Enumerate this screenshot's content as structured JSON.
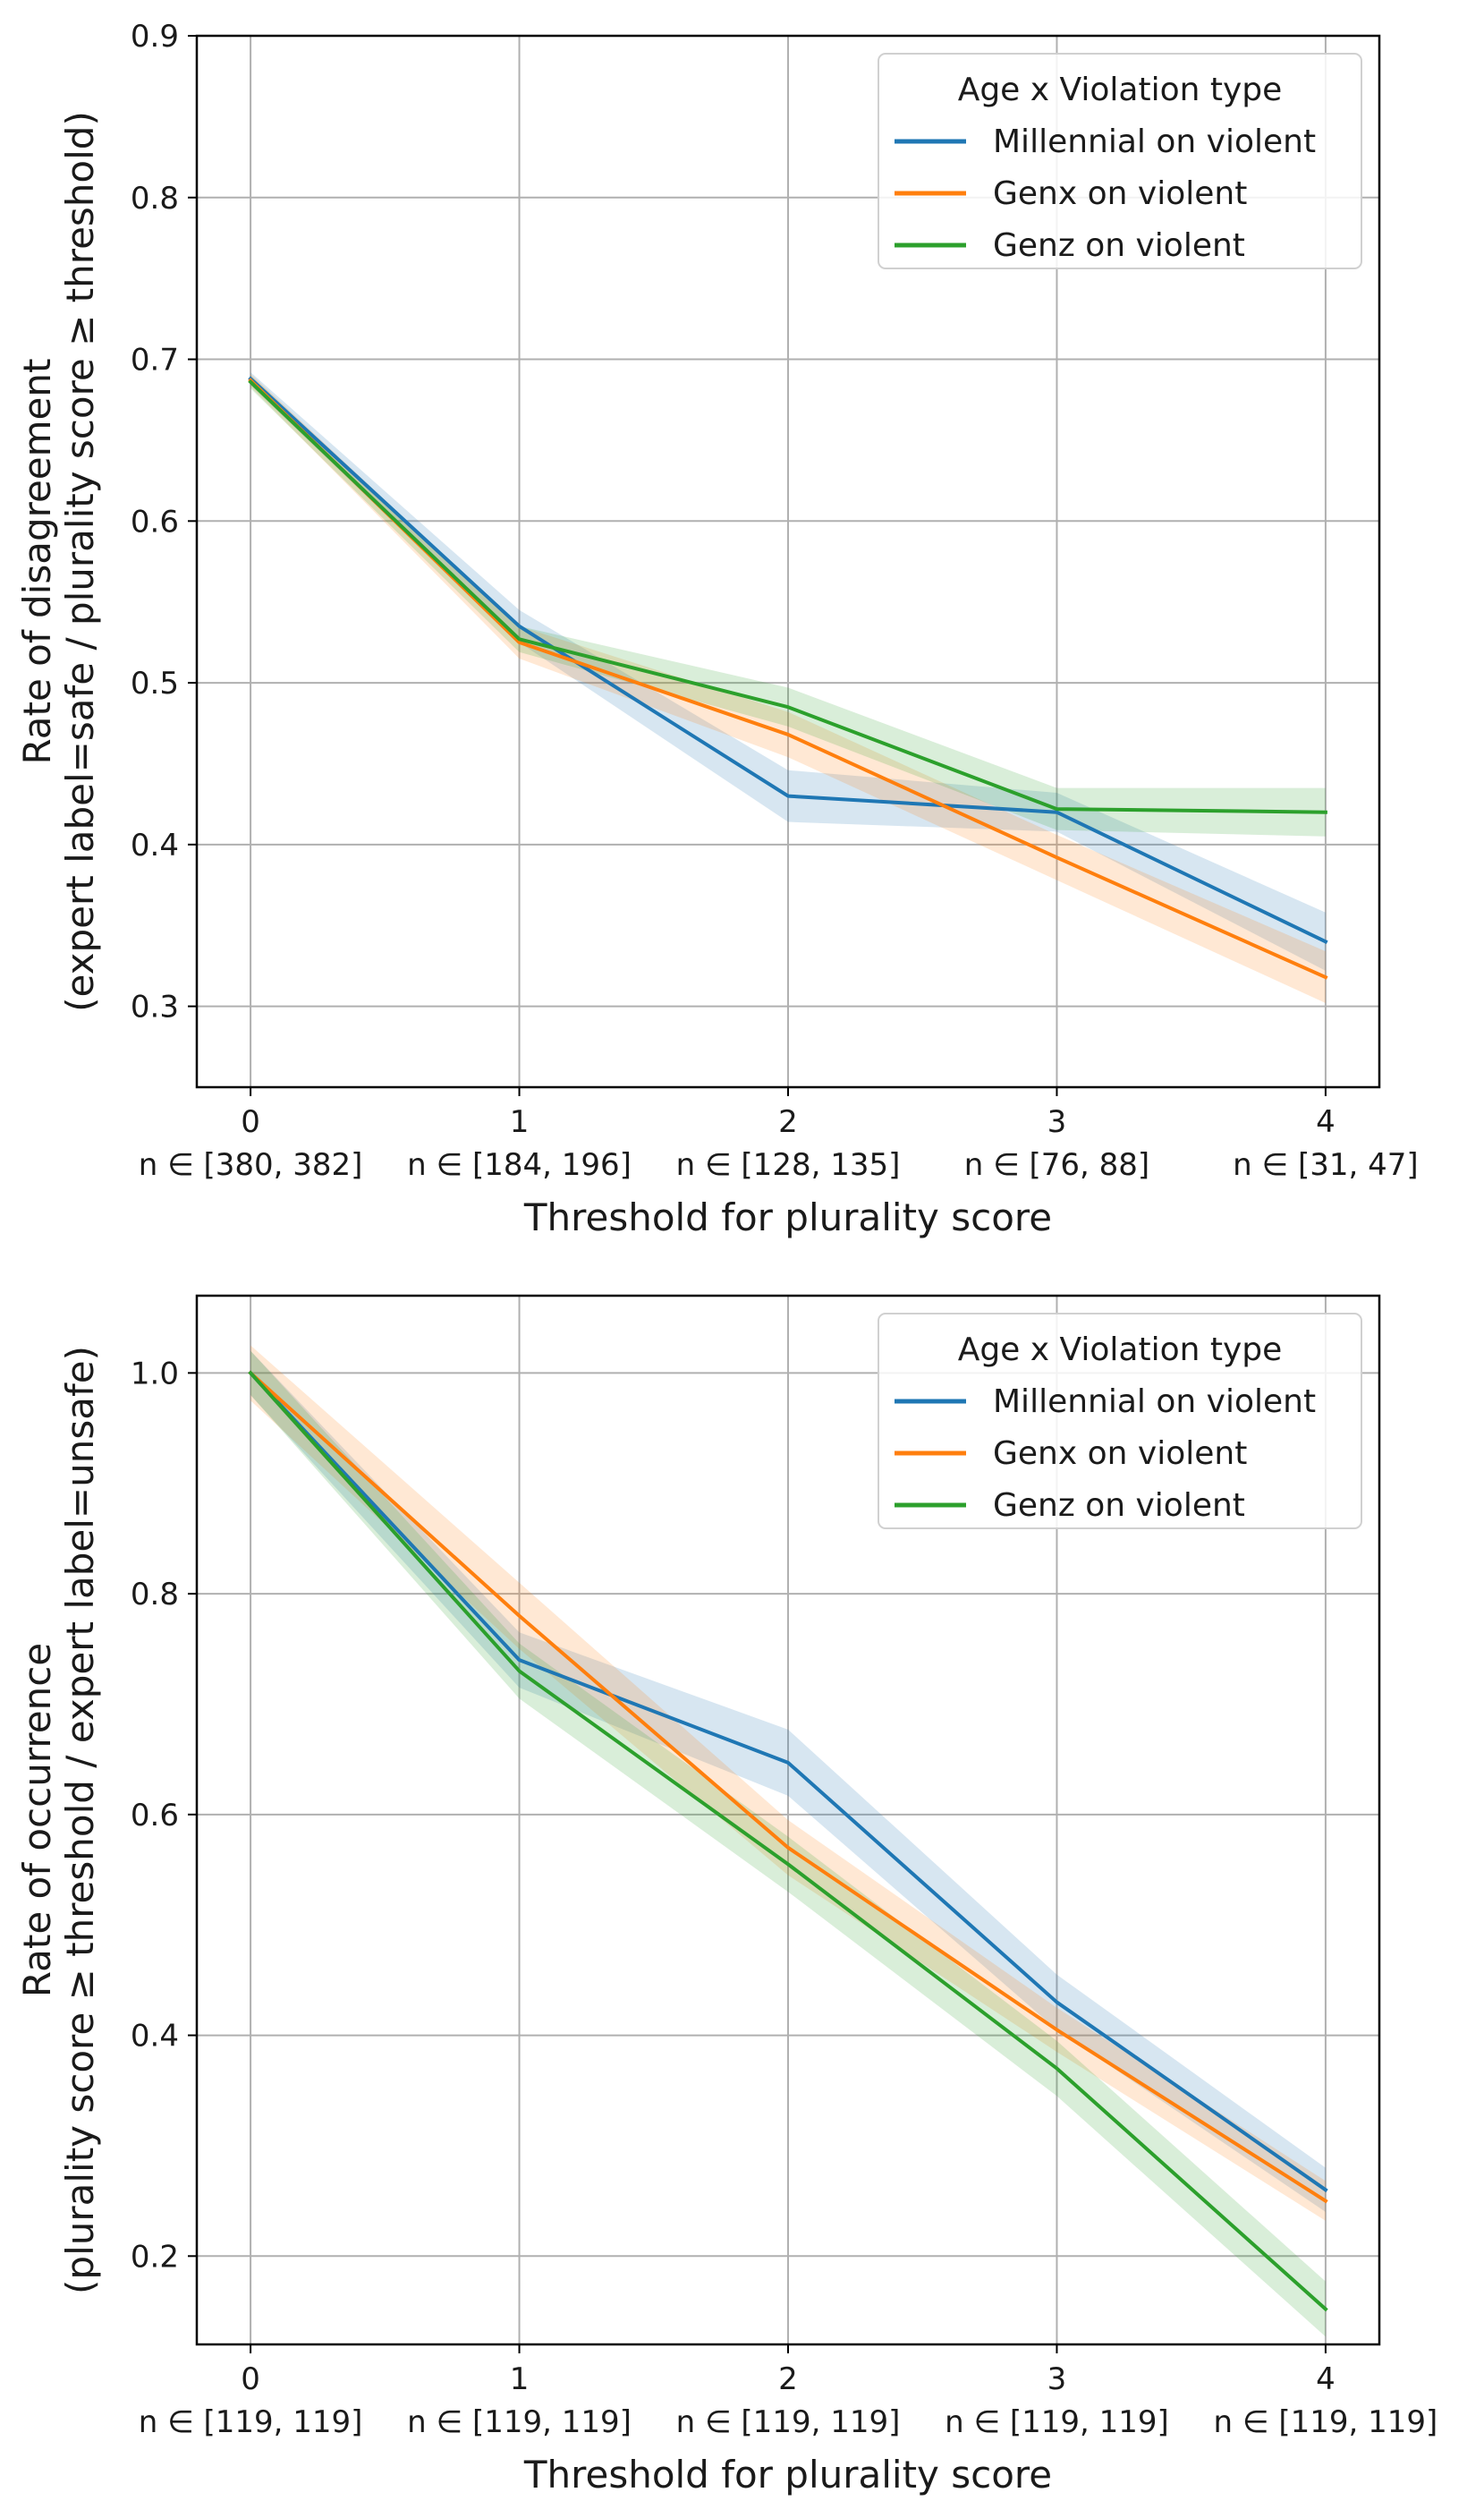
{
  "chart_data": [
    {
      "type": "line",
      "title": "",
      "xlabel": "Threshold for plurality score",
      "ylabel_lines": [
        "Rate of disagreement",
        "(expert label=safe / plurality score ≥ threshold)"
      ],
      "x": [
        0,
        1,
        2,
        3,
        4
      ],
      "xtick_labels": [
        "0",
        "1",
        "2",
        "3",
        "4"
      ],
      "xtick_sublabels": [
        "n ∈ [380, 382]",
        "n ∈ [184, 196]",
        "n ∈ [128, 135]",
        "n ∈ [76, 88]",
        "n ∈ [31, 47]"
      ],
      "xlim": [
        -0.2,
        4.2
      ],
      "ylim": [
        0.25,
        0.9
      ],
      "yticks": [
        0.3,
        0.4,
        0.5,
        0.6,
        0.7,
        0.8,
        0.9
      ],
      "ytick_labels": [
        "0.3",
        "0.4",
        "0.5",
        "0.6",
        "0.7",
        "0.8",
        "0.9"
      ],
      "grid": true,
      "legend": {
        "title": "Age x Violation type",
        "position": "top-right"
      },
      "series": [
        {
          "name": "Millennial on violent",
          "color": "#1f77b4",
          "values": [
            0.688,
            0.535,
            0.43,
            0.42,
            0.34
          ],
          "ci_halfwidth": [
            0.004,
            0.01,
            0.016,
            0.012,
            0.018
          ]
        },
        {
          "name": "Genx on violent",
          "color": "#ff7f0e",
          "values": [
            0.687,
            0.525,
            0.468,
            0.392,
            0.318
          ],
          "ci_halfwidth": [
            0.004,
            0.01,
            0.014,
            0.014,
            0.016
          ]
        },
        {
          "name": "Genz on violent",
          "color": "#2ca02c",
          "values": [
            0.686,
            0.527,
            0.485,
            0.422,
            0.42
          ],
          "ci_halfwidth": [
            0.004,
            0.008,
            0.012,
            0.013,
            0.015
          ]
        }
      ]
    },
    {
      "type": "line",
      "title": "",
      "xlabel": "Threshold for plurality score",
      "ylabel_lines": [
        "Rate of occurrence",
        "(plurality score ≥ threshold / expert label=unsafe)"
      ],
      "x": [
        0,
        1,
        2,
        3,
        4
      ],
      "xtick_labels": [
        "0",
        "1",
        "2",
        "3",
        "4"
      ],
      "xtick_sublabels": [
        "n ∈ [119, 119]",
        "n ∈ [119, 119]",
        "n ∈ [119, 119]",
        "n ∈ [119, 119]",
        "n ∈ [119, 119]"
      ],
      "xlim": [
        -0.2,
        4.2
      ],
      "ylim": [
        0.12,
        1.07
      ],
      "yticks": [
        0.2,
        0.4,
        0.6,
        0.8,
        1.0
      ],
      "ytick_labels": [
        "0.2",
        "0.4",
        "0.6",
        "0.8",
        "1.0"
      ],
      "grid": true,
      "legend": {
        "title": "Age x Violation type",
        "position": "top-right"
      },
      "series": [
        {
          "name": "Millennial on violent",
          "color": "#1f77b4",
          "values": [
            1.0,
            0.74,
            0.647,
            0.43,
            0.26
          ],
          "ci_halfwidth": [
            0.02,
            0.025,
            0.03,
            0.025,
            0.02
          ]
        },
        {
          "name": "Genx on violent",
          "color": "#ff7f0e",
          "values": [
            1.0,
            0.78,
            0.57,
            0.405,
            0.25
          ],
          "ci_halfwidth": [
            0.025,
            0.03,
            0.025,
            0.02,
            0.018
          ]
        },
        {
          "name": "Genz on violent",
          "color": "#2ca02c",
          "values": [
            1.0,
            0.73,
            0.555,
            0.37,
            0.152
          ],
          "ci_halfwidth": [
            0.02,
            0.025,
            0.025,
            0.025,
            0.025
          ]
        }
      ]
    }
  ]
}
